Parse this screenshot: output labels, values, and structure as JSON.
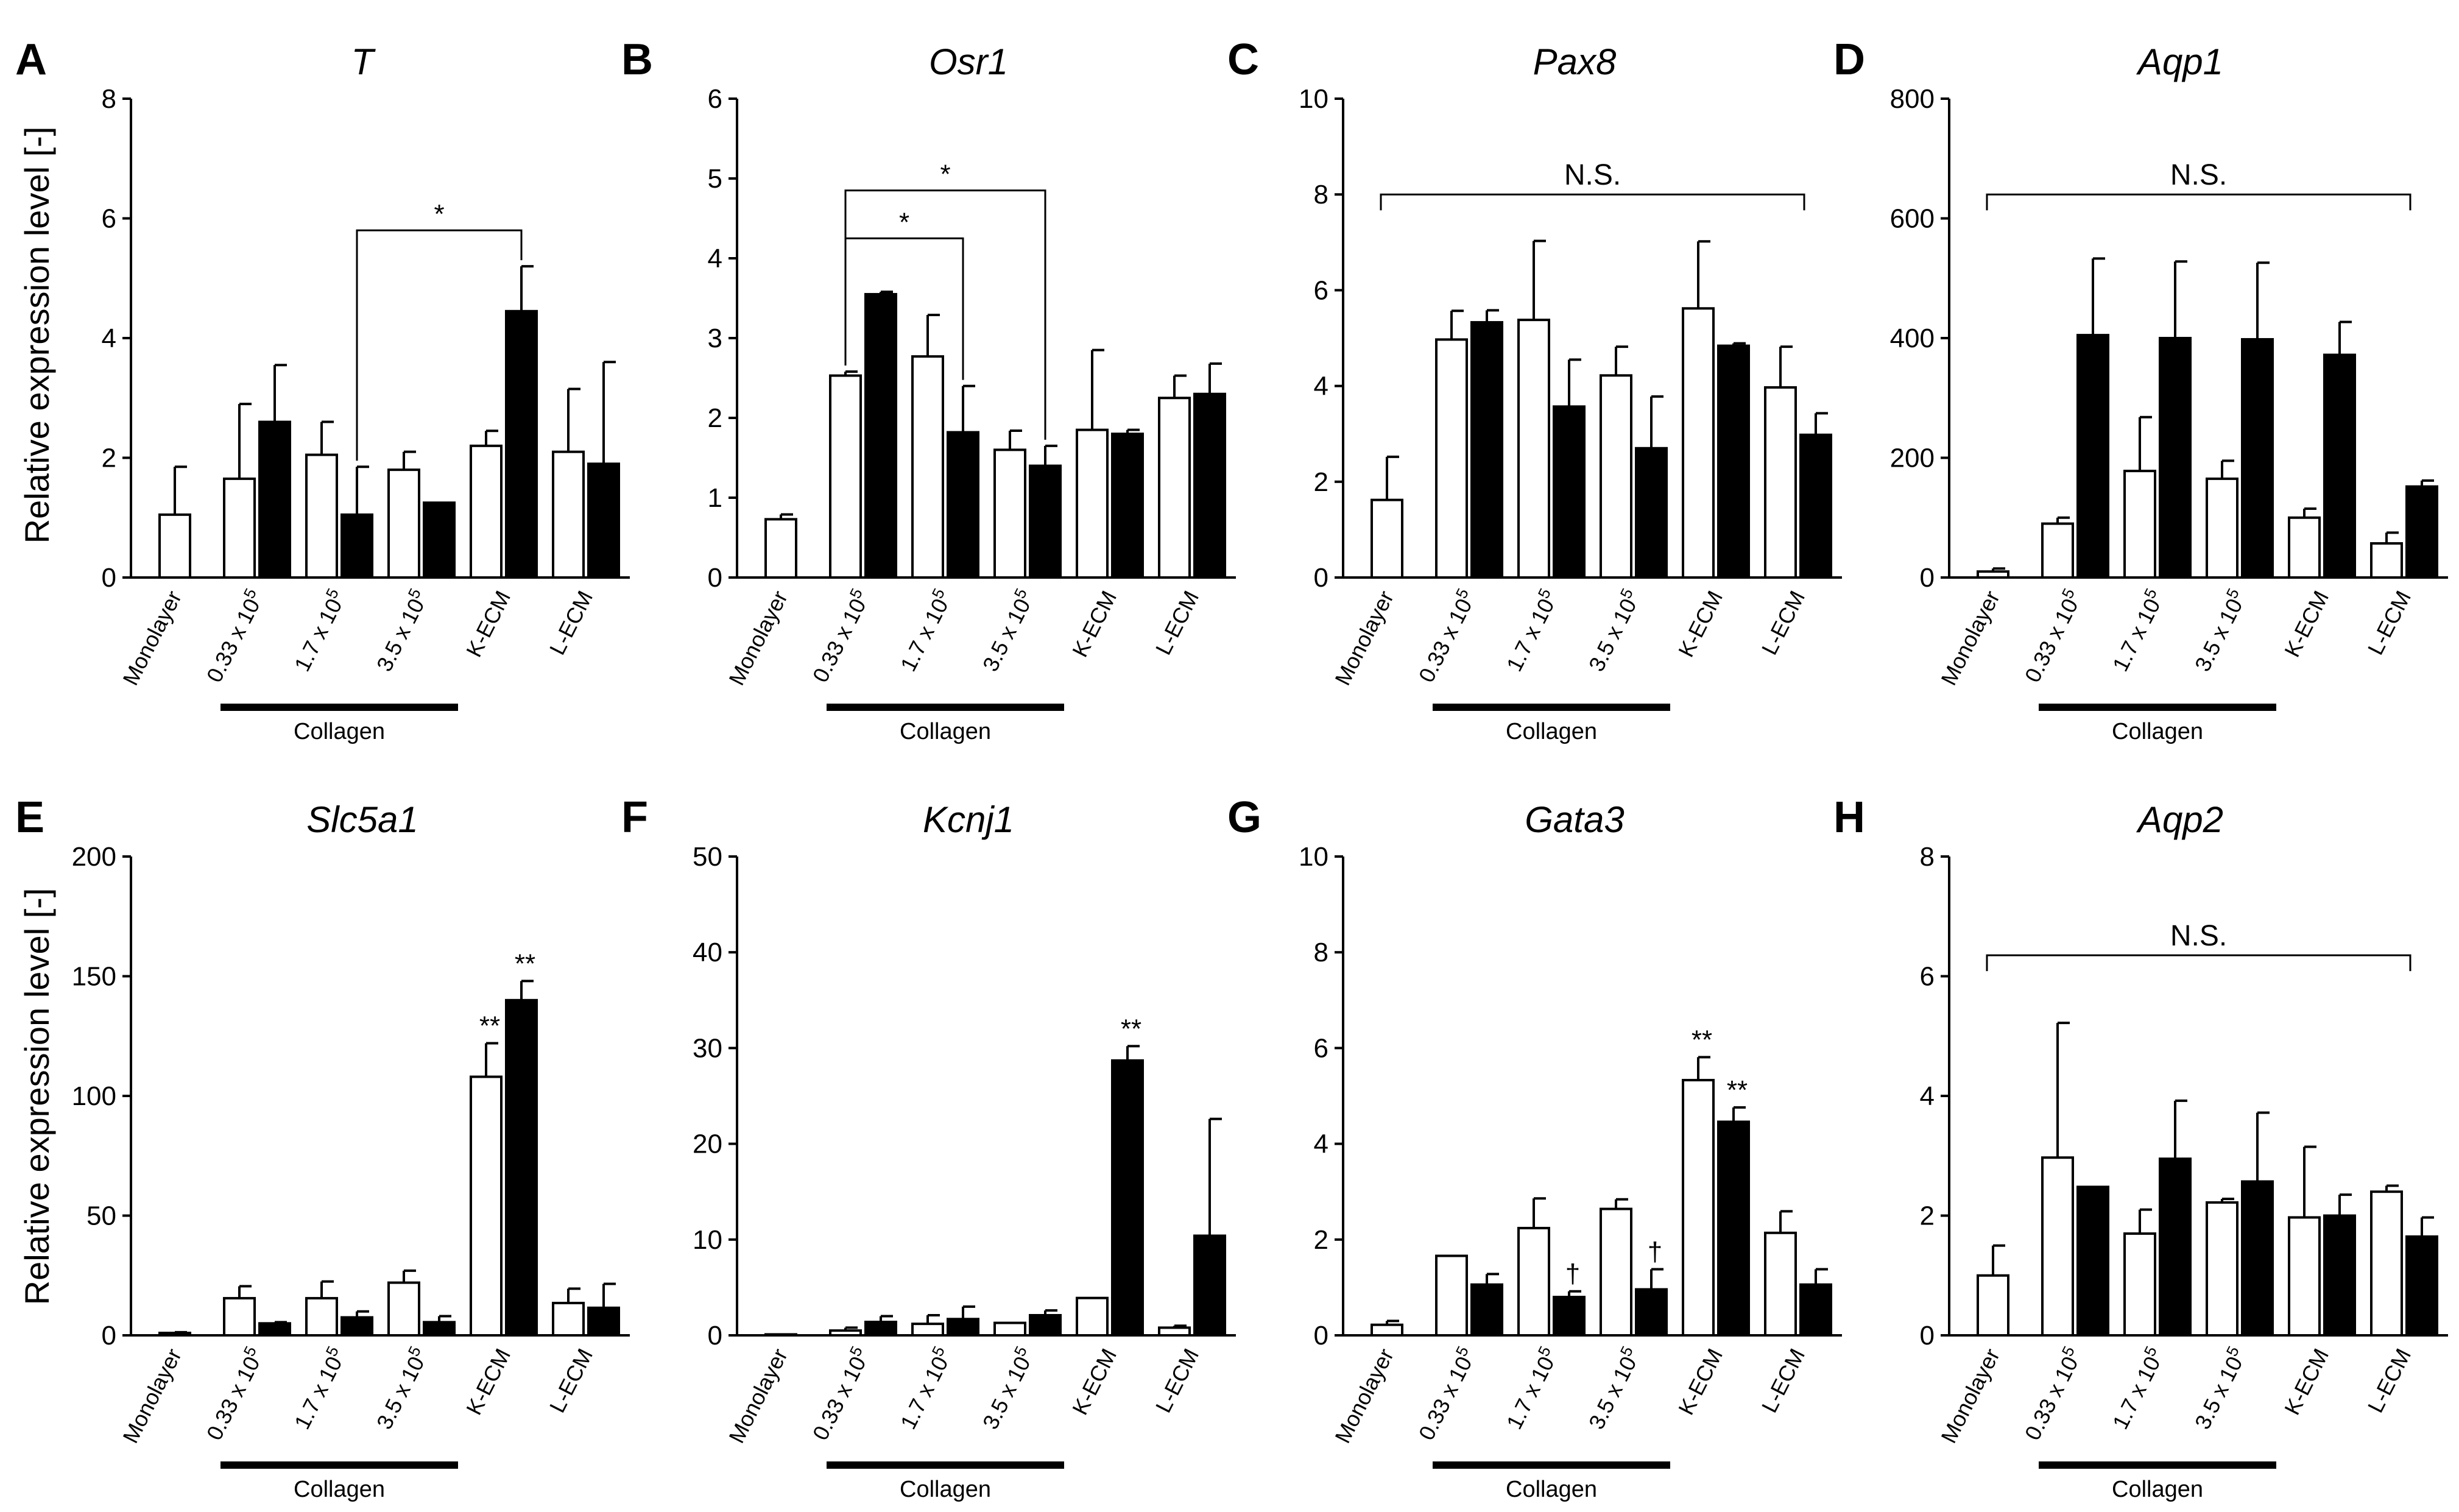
{
  "y_axis_label": "Relative expression level [-]",
  "group_label": "Collagen",
  "categories": [
    "Monolayer",
    "0.33 x 10",
    "1.7 x 10",
    "3.5 x 10",
    "K-ECM",
    "L-ECM"
  ],
  "category_superscripts": [
    "",
    "5",
    "5",
    "5",
    "",
    ""
  ],
  "colors": {
    "open_bar": "#ffffff",
    "filled_bar": "#000000",
    "stroke": "#000000"
  },
  "chart_data": [
    {
      "letter": "A",
      "title": "T",
      "type": "bar",
      "ylim": [
        0,
        8
      ],
      "yticks": [
        0,
        2,
        4,
        6,
        8
      ],
      "series": [
        {
          "name": "open",
          "values": [
            1.05,
            1.65,
            2.05,
            1.8,
            2.2,
            2.1
          ],
          "errors": [
            0.8,
            1.25,
            0.55,
            0.3,
            0.25,
            1.05
          ]
        },
        {
          "name": "filled",
          "values": [
            null,
            2.6,
            1.05,
            1.25,
            4.45,
            1.9
          ],
          "errors": [
            null,
            0.95,
            0.8,
            0,
            0.75,
            1.7
          ]
        }
      ],
      "brackets": [
        {
          "from": [
            2,
            1
          ],
          "to": [
            4,
            1
          ],
          "y": 5.8,
          "label": "*"
        }
      ],
      "annotations": [],
      "ns": null
    },
    {
      "letter": "B",
      "title": "Osr1",
      "type": "bar",
      "ylim": [
        0,
        6
      ],
      "yticks": [
        0,
        1,
        2,
        3,
        4,
        5,
        6
      ],
      "series": [
        {
          "name": "open",
          "values": [
            0.73,
            2.53,
            2.77,
            1.6,
            1.85,
            2.25
          ],
          "errors": [
            0.06,
            0.05,
            0.52,
            0.24,
            1.0,
            0.28
          ]
        },
        {
          "name": "filled",
          "values": [
            null,
            3.55,
            1.82,
            1.4,
            1.8,
            2.3
          ],
          "errors": [
            null,
            0.03,
            0.58,
            0.25,
            0.05,
            0.38
          ]
        }
      ],
      "brackets": [
        {
          "from": [
            1,
            0
          ],
          "to": [
            2,
            1
          ],
          "y": 4.25,
          "label": "*"
        },
        {
          "from": [
            1,
            0
          ],
          "to": [
            3,
            1
          ],
          "y": 4.85,
          "label": "*"
        }
      ],
      "annotations": [],
      "ns": null
    },
    {
      "letter": "C",
      "title": "Pax8",
      "type": "bar",
      "ylim": [
        0,
        10
      ],
      "yticks": [
        0,
        2,
        4,
        6,
        8,
        10
      ],
      "series": [
        {
          "name": "open",
          "values": [
            1.62,
            4.97,
            5.38,
            4.22,
            5.62,
            3.97
          ],
          "errors": [
            0.9,
            0.6,
            1.65,
            0.6,
            1.4,
            0.85
          ]
        },
        {
          "name": "filled",
          "values": [
            null,
            5.33,
            3.57,
            2.7,
            4.84,
            2.98
          ],
          "errors": [
            null,
            0.25,
            0.98,
            1.08,
            0.05,
            0.45
          ]
        }
      ],
      "brackets": [],
      "annotations": [],
      "ns": {
        "from": 0,
        "to": 5,
        "y": 8.0,
        "label": "N.S."
      }
    },
    {
      "letter": "D",
      "title": "Aqp1",
      "type": "bar",
      "ylim": [
        0,
        800
      ],
      "yticks": [
        0,
        200,
        400,
        600,
        800
      ],
      "series": [
        {
          "name": "open",
          "values": [
            10,
            90,
            178,
            165,
            100,
            57
          ],
          "errors": [
            5,
            10,
            90,
            30,
            15,
            18
          ]
        },
        {
          "name": "filled",
          "values": [
            null,
            405,
            400,
            398,
            372,
            152
          ],
          "errors": [
            null,
            128,
            128,
            128,
            55,
            10
          ]
        }
      ],
      "brackets": [],
      "annotations": [],
      "ns": {
        "from": 0,
        "to": 5,
        "y": 640,
        "label": "N.S."
      }
    },
    {
      "letter": "E",
      "title": "Slc5a1",
      "type": "bar",
      "ylim": [
        0,
        200
      ],
      "yticks": [
        0,
        50,
        100,
        150,
        200
      ],
      "series": [
        {
          "name": "open",
          "values": [
            1,
            15.5,
            15.5,
            22,
            108,
            13.5
          ],
          "errors": [
            0.3,
            5,
            7,
            5,
            14,
            6
          ]
        },
        {
          "name": "filled",
          "values": [
            null,
            5,
            7.5,
            5.5,
            140,
            11.5
          ],
          "errors": [
            null,
            0.5,
            2.5,
            2.5,
            8,
            10
          ]
        }
      ],
      "brackets": [],
      "annotations": [
        {
          "bar": [
            4,
            0
          ],
          "label": "**"
        },
        {
          "bar": [
            4,
            1
          ],
          "label": "**"
        }
      ],
      "ns": null
    },
    {
      "letter": "F",
      "title": "Kcnj1",
      "type": "bar",
      "ylim": [
        0,
        50
      ],
      "yticks": [
        0,
        10,
        20,
        30,
        40,
        50
      ],
      "series": [
        {
          "name": "open",
          "values": [
            0.1,
            0.5,
            1.2,
            1.3,
            3.9,
            0.8
          ],
          "errors": [
            0,
            0.3,
            0.9,
            0,
            0,
            0.2
          ]
        },
        {
          "name": "filled",
          "values": [
            null,
            1.4,
            1.7,
            2.1,
            28.7,
            10.4
          ],
          "errors": [
            null,
            0.6,
            1.3,
            0.5,
            1.5,
            12.2
          ]
        }
      ],
      "brackets": [],
      "annotations": [
        {
          "bar": [
            4,
            1
          ],
          "label": "**"
        }
      ],
      "ns": null
    },
    {
      "letter": "G",
      "title": "Gata3",
      "type": "bar",
      "ylim": [
        0,
        10
      ],
      "yticks": [
        0,
        2,
        4,
        6,
        8,
        10
      ],
      "series": [
        {
          "name": "open",
          "values": [
            0.22,
            1.66,
            2.24,
            2.64,
            5.33,
            2.14
          ],
          "errors": [
            0.08,
            0,
            0.62,
            0.2,
            0.48,
            0.45
          ]
        },
        {
          "name": "filled",
          "values": [
            null,
            1.06,
            0.8,
            0.96,
            4.46,
            1.06
          ],
          "errors": [
            null,
            0.22,
            0.12,
            0.42,
            0.3,
            0.32
          ]
        }
      ],
      "brackets": [],
      "annotations": [
        {
          "bar": [
            2,
            1
          ],
          "label": "†"
        },
        {
          "bar": [
            3,
            1
          ],
          "label": "†"
        },
        {
          "bar": [
            4,
            0
          ],
          "label": "**"
        },
        {
          "bar": [
            4,
            1
          ],
          "label": "**"
        }
      ],
      "ns": null
    },
    {
      "letter": "H",
      "title": "Aqp2",
      "type": "bar",
      "ylim": [
        0,
        8
      ],
      "yticks": [
        0,
        2,
        4,
        6,
        8
      ],
      "series": [
        {
          "name": "open",
          "values": [
            1.0,
            2.97,
            1.7,
            2.22,
            1.97,
            2.4
          ],
          "errors": [
            0.5,
            2.25,
            0.4,
            0.06,
            1.18,
            0.1
          ]
        },
        {
          "name": "filled",
          "values": [
            null,
            2.48,
            2.95,
            2.57,
            2.0,
            1.65
          ],
          "errors": [
            null,
            0,
            0.97,
            1.15,
            0.35,
            0.32
          ]
        }
      ],
      "brackets": [],
      "annotations": [],
      "ns": {
        "from": 0,
        "to": 5,
        "y": 6.35,
        "label": "N.S."
      }
    }
  ]
}
